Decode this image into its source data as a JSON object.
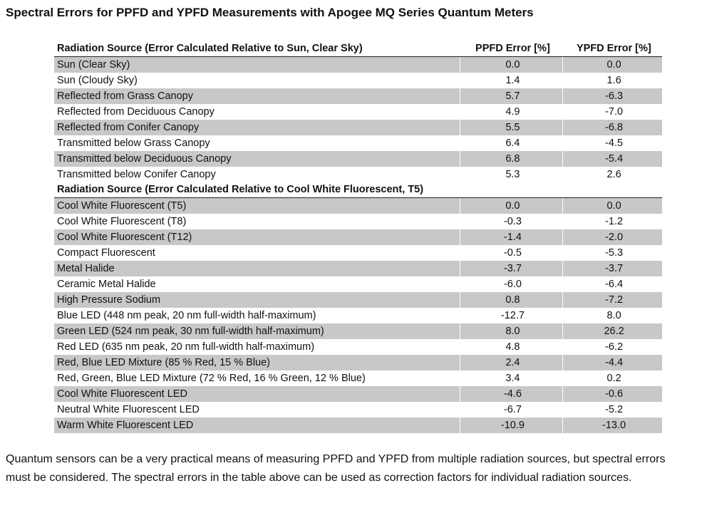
{
  "title": "Spectral Errors for PPFD and YPFD Measurements with Apogee MQ Series Quantum Meters",
  "table": {
    "col_ppfd": "PPFD Error [%]",
    "col_ypfd": "YPFD Error [%]",
    "section1": {
      "header": "Radiation Source (Error Calculated Relative to Sun, Clear Sky)",
      "rows": [
        {
          "source": "Sun (Clear Sky)",
          "ppfd": "0.0",
          "ypfd": "0.0"
        },
        {
          "source": "Sun (Cloudy Sky)",
          "ppfd": "1.4",
          "ypfd": "1.6"
        },
        {
          "source": "Reflected from Grass Canopy",
          "ppfd": "5.7",
          "ypfd": "-6.3"
        },
        {
          "source": "Reflected from Deciduous Canopy",
          "ppfd": "4.9",
          "ypfd": "-7.0"
        },
        {
          "source": "Reflected from Conifer Canopy",
          "ppfd": "5.5",
          "ypfd": "-6.8"
        },
        {
          "source": "Transmitted below Grass Canopy",
          "ppfd": "6.4",
          "ypfd": "-4.5"
        },
        {
          "source": "Transmitted below Deciduous Canopy",
          "ppfd": "6.8",
          "ypfd": "-5.4"
        },
        {
          "source": "Transmitted below Conifer Canopy",
          "ppfd": "5.3",
          "ypfd": "2.6"
        }
      ]
    },
    "section2": {
      "header": "Radiation Source (Error Calculated Relative to Cool White Fluorescent, T5)",
      "rows": [
        {
          "source": "Cool White Fluorescent (T5)",
          "ppfd": "0.0",
          "ypfd": "0.0"
        },
        {
          "source": "Cool White Fluorescent (T8)",
          "ppfd": "-0.3",
          "ypfd": "-1.2"
        },
        {
          "source": "Cool White Fluorescent (T12)",
          "ppfd": "-1.4",
          "ypfd": "-2.0"
        },
        {
          "source": "Compact Fluorescent",
          "ppfd": "-0.5",
          "ypfd": "-5.3"
        },
        {
          "source": "Metal Halide",
          "ppfd": "-3.7",
          "ypfd": "-3.7"
        },
        {
          "source": "Ceramic Metal Halide",
          "ppfd": "-6.0",
          "ypfd": "-6.4"
        },
        {
          "source": "High Pressure Sodium",
          "ppfd": "0.8",
          "ypfd": "-7.2"
        },
        {
          "source": "Blue LED (448 nm peak, 20 nm full-width half-maximum)",
          "ppfd": "-12.7",
          "ypfd": "8.0"
        },
        {
          "source": "Green LED (524 nm peak, 30 nm full-width half-maximum)",
          "ppfd": "8.0",
          "ypfd": "26.2"
        },
        {
          "source": "Red LED (635 nm peak, 20 nm full-width half-maximum)",
          "ppfd": "4.8",
          "ypfd": "-6.2"
        },
        {
          "source": "Red, Blue LED Mixture (85 % Red, 15 % Blue)",
          "ppfd": "2.4",
          "ypfd": "-4.4"
        },
        {
          "source": "Red, Green, Blue LED Mixture (72 % Red, 16 % Green, 12 % Blue)",
          "ppfd": "3.4",
          "ypfd": "0.2"
        },
        {
          "source": "Cool White Fluorescent LED",
          "ppfd": "-4.6",
          "ypfd": "-0.6"
        },
        {
          "source": "Neutral White Fluorescent LED",
          "ppfd": "-6.7",
          "ypfd": "-5.2"
        },
        {
          "source": "Warm White Fluorescent LED",
          "ppfd": "-10.9",
          "ypfd": "-13.0"
        }
      ]
    }
  },
  "paragraph": "Quantum sensors can be a very practical means of measuring PPFD and YPFD from multiple radiation sources, but spectral errors must be considered. The spectral errors in the table above can be used as correction factors for individual radiation sources.",
  "colors": {
    "row_shade": "#c8c8c8",
    "text": "#111111"
  }
}
